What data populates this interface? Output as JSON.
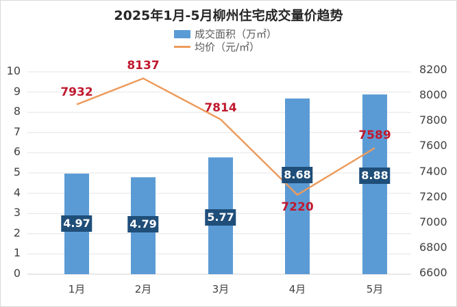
{
  "chart_data": {
    "type": "bar+line",
    "title": "2025年1月-5月柳州住宅成交量价趋势",
    "categories": [
      "1月",
      "2月",
      "3月",
      "4月",
      "5月"
    ],
    "series": [
      {
        "name": "成交面积（万㎡）",
        "type": "bar",
        "axis": "left",
        "color": "#5b9bd5",
        "values": [
          4.97,
          4.79,
          5.77,
          8.68,
          8.88
        ]
      },
      {
        "name": "均价（元/㎡）",
        "type": "line",
        "axis": "right",
        "color": "#ed9b5c",
        "values": [
          7932,
          8137,
          7814,
          7220,
          7589
        ]
      }
    ],
    "left_axis": {
      "ticks": [
        0,
        1,
        2,
        3,
        4,
        5,
        6,
        7,
        8,
        9,
        10
      ],
      "ylim": [
        0,
        10
      ]
    },
    "right_axis": {
      "ticks": [
        6600,
        6800,
        7000,
        7200,
        7400,
        7600,
        7800,
        8000,
        8200
      ],
      "ylim": [
        6600,
        8200
      ]
    },
    "legend_position": "top",
    "grid": true
  },
  "title": "2025年1月-5月柳州住宅成交量价趋势",
  "legend": {
    "bar": "成交面积（万㎡）",
    "line": "均价（元/㎡）"
  },
  "left_ticks": [
    "0",
    "1",
    "2",
    "3",
    "4",
    "5",
    "6",
    "7",
    "8",
    "9",
    "10"
  ],
  "right_ticks": [
    "6600",
    "6800",
    "7000",
    "7200",
    "7400",
    "7600",
    "7800",
    "8000",
    "8200"
  ],
  "categories": [
    "1月",
    "2月",
    "3月",
    "4月",
    "5月"
  ],
  "bar_labels": [
    "4.97",
    "4.79",
    "5.77",
    "8.68",
    "8.88"
  ],
  "price_labels": [
    "7932",
    "8137",
    "7814",
    "7220",
    "7589"
  ],
  "colors": {
    "bar": "#5b9bd5",
    "line": "#ed9b5c",
    "bar_label_bg": "#1f4e79",
    "price_label": "#c0192e"
  }
}
